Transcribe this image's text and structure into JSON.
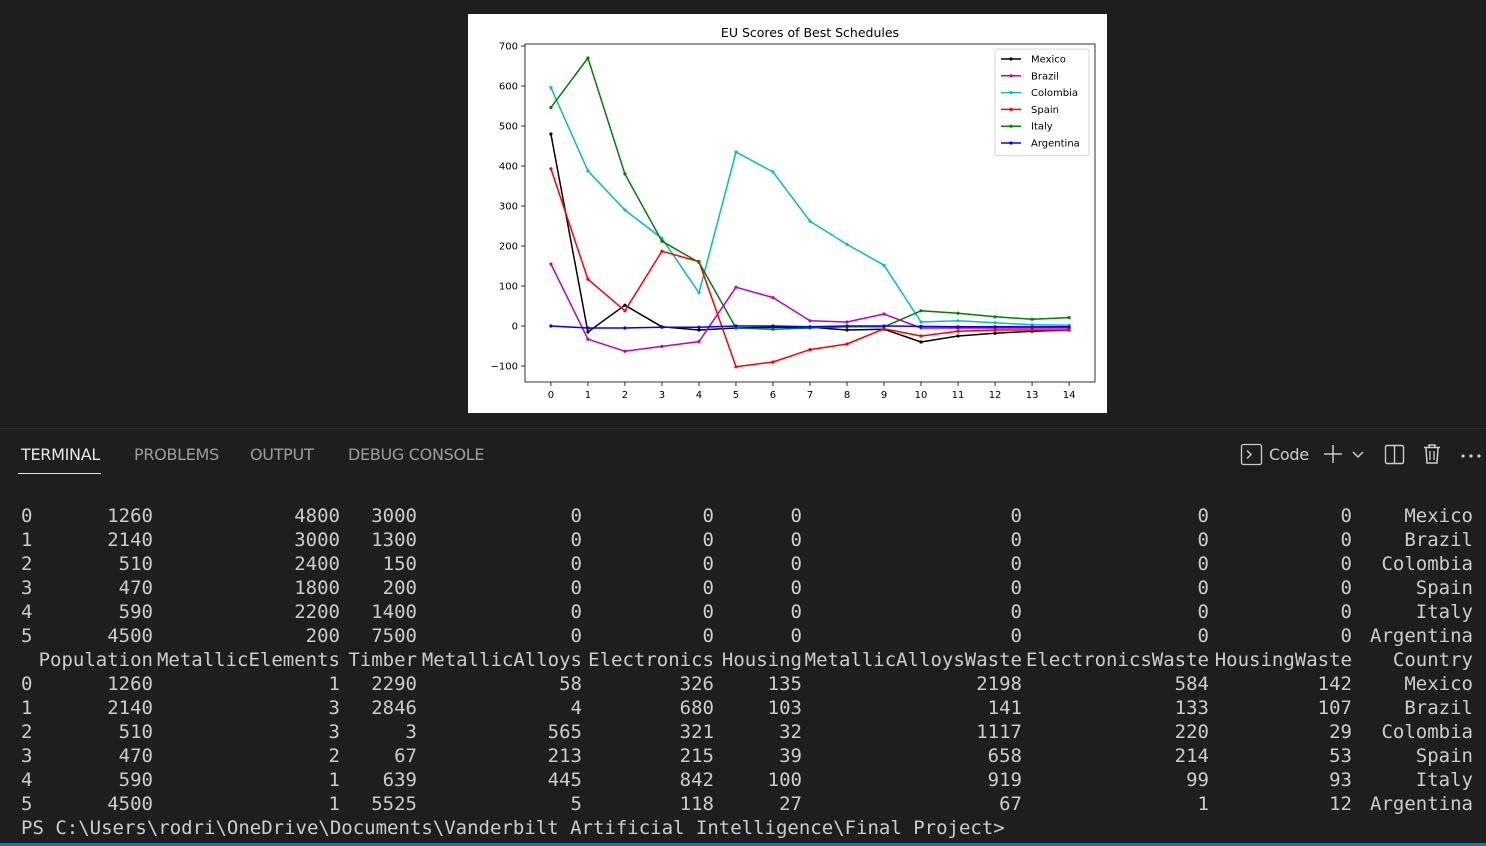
{
  "chart_data": {
    "type": "line",
    "title": "EU Scores of Best Schedules",
    "xlabel": "",
    "ylabel": "",
    "x": [
      0,
      1,
      2,
      3,
      4,
      5,
      6,
      7,
      8,
      9,
      10,
      11,
      12,
      13,
      14
    ],
    "x_ticks": [
      "0",
      "1",
      "2",
      "3",
      "4",
      "5",
      "6",
      "7",
      "8",
      "9",
      "10",
      "11",
      "12",
      "13",
      "14"
    ],
    "y_ticks": [
      "−100",
      "0",
      "100",
      "200",
      "300",
      "400",
      "500",
      "600",
      "700"
    ],
    "xlim": [
      -0.7,
      14.7
    ],
    "ylim": [
      -140,
      705
    ],
    "legend_position": "top-right",
    "grid": false,
    "series": [
      {
        "name": "Mexico",
        "color": "#000000",
        "values": [
          480,
          -15,
          52,
          -2,
          -10,
          -5,
          -3,
          -3,
          -10,
          -8,
          -40,
          -25,
          -18,
          -13,
          -10
        ]
      },
      {
        "name": "Brazil",
        "color": "#bf00bf",
        "values": [
          155,
          -33,
          -63,
          -51,
          -39,
          97,
          71,
          13,
          10,
          30,
          -5,
          -5,
          -5,
          -5,
          -5
        ]
      },
      {
        "name": "Colombia",
        "color": "#00bfbf",
        "values": [
          596,
          388,
          290,
          219,
          83,
          435,
          385,
          262,
          204,
          152,
          10,
          13,
          8,
          3,
          2
        ]
      },
      {
        "name": "Spain",
        "color": "#ff0000",
        "values": [
          393,
          117,
          38,
          187,
          161,
          -102,
          -90,
          -59,
          -45,
          -7,
          -25,
          -13,
          -10,
          -10,
          -10
        ]
      },
      {
        "name": "Italy",
        "color": "#008000",
        "values": [
          546,
          670,
          380,
          212,
          159,
          -5,
          -8,
          -5,
          -2,
          -2,
          38,
          32,
          23,
          17,
          21
        ]
      },
      {
        "name": "Argentina",
        "color": "#0000ff",
        "values": [
          0,
          -5,
          -5,
          -3,
          -3,
          0,
          0,
          -2,
          0,
          0,
          -1,
          -2,
          -2,
          -2,
          -2
        ]
      }
    ]
  },
  "tabs": [
    {
      "label": "TERMINAL",
      "active": true
    },
    {
      "label": "PROBLEMS",
      "active": false
    },
    {
      "label": "OUTPUT",
      "active": false
    },
    {
      "label": "DEBUG CONSOLE",
      "active": false
    }
  ],
  "toolbar": {
    "launch_profile_label": "Code",
    "icons": [
      "terminal-icon",
      "plus-icon",
      "chevron-down-icon",
      "split-terminal-icon",
      "trash-icon",
      "more-actions-icon"
    ]
  },
  "terminal": {
    "columns": [
      "",
      "Population",
      "MetallicElements",
      "Timber",
      "MetallicAlloys",
      "Electronics",
      "Housing",
      "MetallicAlloysWaste",
      "ElectronicsWaste",
      "HousingWaste",
      "Country"
    ],
    "table_top": [
      [
        "0",
        "1260",
        "4800",
        "3000",
        "0",
        "0",
        "0",
        "0",
        "0",
        "0",
        "Mexico"
      ],
      [
        "1",
        "2140",
        "3000",
        "1300",
        "0",
        "0",
        "0",
        "0",
        "0",
        "0",
        "Brazil"
      ],
      [
        "2",
        "510",
        "2400",
        "150",
        "0",
        "0",
        "0",
        "0",
        "0",
        "0",
        "Colombia"
      ],
      [
        "3",
        "470",
        "1800",
        "200",
        "0",
        "0",
        "0",
        "0",
        "0",
        "0",
        "Spain"
      ],
      [
        "4",
        "590",
        "2200",
        "1400",
        "0",
        "0",
        "0",
        "0",
        "0",
        "0",
        "Italy"
      ],
      [
        "5",
        "4500",
        "200",
        "7500",
        "0",
        "0",
        "0",
        "0",
        "0",
        "0",
        "Argentina"
      ]
    ],
    "table_bottom": [
      [
        "0",
        "1260",
        "1",
        "2290",
        "58",
        "326",
        "135",
        "2198",
        "584",
        "142",
        "Mexico"
      ],
      [
        "1",
        "2140",
        "3",
        "2846",
        "4",
        "680",
        "103",
        "141",
        "133",
        "107",
        "Brazil"
      ],
      [
        "2",
        "510",
        "3",
        "3",
        "565",
        "321",
        "32",
        "1117",
        "220",
        "29",
        "Colombia"
      ],
      [
        "3",
        "470",
        "2",
        "67",
        "213",
        "215",
        "39",
        "658",
        "214",
        "53",
        "Spain"
      ],
      [
        "4",
        "590",
        "1",
        "639",
        "445",
        "842",
        "100",
        "919",
        "99",
        "93",
        "Italy"
      ],
      [
        "5",
        "4500",
        "1",
        "5525",
        "5",
        "118",
        "27",
        "67",
        "1",
        "12",
        "Argentina"
      ]
    ],
    "prompt": "PS C:\\Users\\rodri\\OneDrive\\Documents\\Vanderbilt Artificial Intelligence\\Final Project>"
  }
}
